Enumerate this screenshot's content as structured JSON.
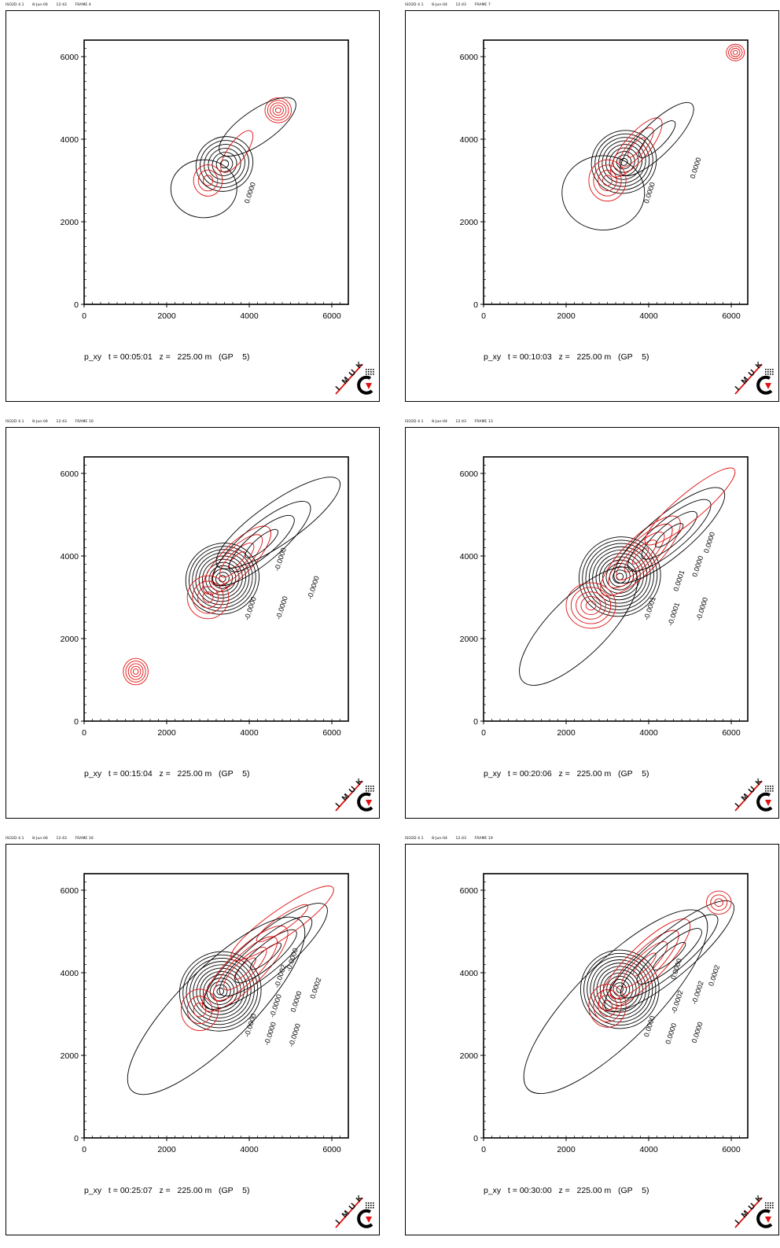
{
  "colors": {
    "positive": "#e01010",
    "negative": "#000000",
    "frame": "#000000"
  },
  "logo": {
    "letters": [
      "I",
      "M",
      "U",
      "K"
    ]
  },
  "chart_data": [
    {
      "type": "contour",
      "header": {
        "program": "ISO2D 4.1",
        "date": "8-Jun-04",
        "time": "12:43",
        "frame": "FRAME 4"
      },
      "caption": "p_xy   t = 00:05:01   z =   225.00 m   (GP    5)",
      "variable": "p_xy",
      "time": "00:05:01",
      "z": "225.00 m",
      "gp": "5",
      "xlim": [
        0,
        6400
      ],
      "ylim": [
        0,
        6400
      ],
      "xticks": [
        0,
        2000,
        4000,
        6000
      ],
      "yticks": [
        0,
        2000,
        4000,
        6000
      ],
      "tick_labels": [
        "0",
        "2000",
        "4000",
        "6000"
      ],
      "contour_labels": [
        "0.0000"
      ],
      "features": [
        {
          "sign": "neg",
          "x": 3400,
          "y": 3400,
          "rx": 700,
          "ry": 650,
          "rot": -30,
          "levels": 7
        },
        {
          "sign": "pos",
          "x": 3000,
          "y": 3000,
          "rx": 350,
          "ry": 380,
          "rot": 0,
          "levels": 3
        },
        {
          "sign": "pos",
          "x": 4700,
          "y": 4700,
          "rx": 320,
          "ry": 300,
          "rot": 0,
          "levels": 5
        },
        {
          "sign": "pos",
          "x": 3700,
          "y": 3700,
          "rx": 600,
          "ry": 220,
          "rot": -55,
          "levels": 1
        },
        {
          "sign": "zero",
          "x": 2900,
          "y": 2800,
          "rx": 800,
          "ry": 700,
          "rot": 0,
          "levels": 1
        },
        {
          "sign": "zero",
          "x": 4200,
          "y": 4300,
          "rx": 1100,
          "ry": 400,
          "rot": -35,
          "levels": 1
        }
      ]
    },
    {
      "type": "contour",
      "header": {
        "program": "ISO2D 4.1",
        "date": "8-Jun-04",
        "time": "12:43",
        "frame": "FRAME 7"
      },
      "caption": "p_xy   t = 00:10:03   z =   225.00 m   (GP    5)",
      "variable": "p_xy",
      "time": "00:10:03",
      "z": "225.00 m",
      "gp": "5",
      "xlim": [
        0,
        6400
      ],
      "ylim": [
        0,
        6400
      ],
      "xticks": [
        0,
        2000,
        4000,
        6000
      ],
      "yticks": [
        0,
        2000,
        4000,
        6000
      ],
      "tick_labels": [
        "0",
        "2000",
        "4000",
        "6000"
      ],
      "contour_labels": [
        "0.0000",
        "0.0000"
      ],
      "features": [
        {
          "sign": "neg",
          "x": 3400,
          "y": 3450,
          "rx": 800,
          "ry": 750,
          "rot": -30,
          "levels": 9
        },
        {
          "sign": "pos",
          "x": 3000,
          "y": 3000,
          "rx": 450,
          "ry": 500,
          "rot": 0,
          "levels": 4
        },
        {
          "sign": "pos",
          "x": 3700,
          "y": 3800,
          "rx": 900,
          "ry": 300,
          "rot": -50,
          "levels": 3
        },
        {
          "sign": "neg",
          "x": 4200,
          "y": 4000,
          "rx": 1200,
          "ry": 380,
          "rot": -45,
          "levels": 2
        },
        {
          "sign": "pos",
          "x": 6100,
          "y": 6100,
          "rx": 220,
          "ry": 200,
          "rot": 0,
          "levels": 4
        },
        {
          "sign": "zero",
          "x": 2900,
          "y": 2700,
          "rx": 1000,
          "ry": 900,
          "rot": 0,
          "levels": 1
        }
      ]
    },
    {
      "type": "contour",
      "header": {
        "program": "ISO2D 4.1",
        "date": "8-Jun-04",
        "time": "12:43",
        "frame": "FRAME 10"
      },
      "caption": "p_xy   t = 00:15:04   z =   225.00 m   (GP    5)",
      "variable": "p_xy",
      "time": "00:15:04",
      "z": "225.00 m",
      "gp": "5",
      "xlim": [
        0,
        6400
      ],
      "ylim": [
        0,
        6400
      ],
      "xticks": [
        0,
        2000,
        4000,
        6000
      ],
      "yticks": [
        0,
        2000,
        4000,
        6000
      ],
      "tick_labels": [
        "0",
        "2000",
        "4000",
        "6000"
      ],
      "contour_labels": [
        "-0.0000",
        "-0.0000",
        "-0.0000",
        "-0.0000"
      ],
      "features": [
        {
          "sign": "neg",
          "x": 3350,
          "y": 3450,
          "rx": 900,
          "ry": 850,
          "rot": -30,
          "levels": 11
        },
        {
          "sign": "pos",
          "x": 3000,
          "y": 3000,
          "rx": 500,
          "ry": 520,
          "rot": 0,
          "levels": 4
        },
        {
          "sign": "pos",
          "x": 3700,
          "y": 3900,
          "rx": 1100,
          "ry": 380,
          "rot": -45,
          "levels": 4
        },
        {
          "sign": "neg",
          "x": 4300,
          "y": 4300,
          "rx": 1500,
          "ry": 450,
          "rot": -40,
          "levels": 3
        },
        {
          "sign": "pos",
          "x": 1250,
          "y": 1200,
          "rx": 300,
          "ry": 320,
          "rot": 0,
          "levels": 5
        },
        {
          "sign": "zero",
          "x": 4700,
          "y": 4800,
          "rx": 1800,
          "ry": 500,
          "rot": -35,
          "levels": 1
        }
      ]
    },
    {
      "type": "contour",
      "header": {
        "program": "ISO2D 4.1",
        "date": "8-Jun-04",
        "time": "12:43",
        "frame": "FRAME 13"
      },
      "caption": "p_xy   t = 00:20:06   z =   225.00 m   (GP    5)",
      "variable": "p_xy",
      "time": "00:20:06",
      "z": "225.00 m",
      "gp": "5",
      "xlim": [
        0,
        6400
      ],
      "ylim": [
        0,
        6400
      ],
      "xticks": [
        0,
        2000,
        4000,
        6000
      ],
      "yticks": [
        0,
        2000,
        4000,
        6000
      ],
      "tick_labels": [
        "0",
        "2000",
        "4000",
        "6000"
      ],
      "contour_labels": [
        "-0.0001",
        "-0.0001",
        "-0.0000",
        "0.0001",
        "0.0000",
        "0.0000"
      ],
      "features": [
        {
          "sign": "neg",
          "x": 3300,
          "y": 3500,
          "rx": 1000,
          "ry": 950,
          "rot": -30,
          "levels": 12
        },
        {
          "sign": "pos",
          "x": 2600,
          "y": 2800,
          "rx": 600,
          "ry": 550,
          "rot": 0,
          "levels": 5
        },
        {
          "sign": "pos",
          "x": 3800,
          "y": 4000,
          "rx": 1300,
          "ry": 420,
          "rot": -45,
          "levels": 5
        },
        {
          "sign": "neg",
          "x": 4500,
          "y": 4500,
          "rx": 1700,
          "ry": 500,
          "rot": -40,
          "levels": 4
        },
        {
          "sign": "pos",
          "x": 5000,
          "y": 5200,
          "rx": 1400,
          "ry": 320,
          "rot": -40,
          "levels": 1
        },
        {
          "sign": "zero",
          "x": 2300,
          "y": 2300,
          "rx": 1900,
          "ry": 700,
          "rot": -45,
          "levels": 1
        }
      ]
    },
    {
      "type": "contour",
      "header": {
        "program": "ISO2D 4.1",
        "date": "8-Jun-04",
        "time": "12:43",
        "frame": "FRAME 16"
      },
      "caption": "p_xy   t = 00:25:07   z =   225.00 m   (GP    5)",
      "variable": "p_xy",
      "time": "00:25:07",
      "z": "225.00 m",
      "gp": "5",
      "xlim": [
        0,
        6400
      ],
      "ylim": [
        0,
        6400
      ],
      "xticks": [
        0,
        2000,
        4000,
        6000
      ],
      "yticks": [
        0,
        2000,
        4000,
        6000
      ],
      "tick_labels": [
        "0",
        "2000",
        "4000",
        "6000"
      ],
      "contour_labels": [
        "-0.0000",
        "-0.0000",
        "-0.0000",
        "-0.0000",
        "0.0000",
        "0.0002",
        "-0.0002",
        "-0.0000"
      ],
      "features": [
        {
          "sign": "neg",
          "x": 3300,
          "y": 3550,
          "rx": 1000,
          "ry": 950,
          "rot": -30,
          "levels": 12
        },
        {
          "sign": "pos",
          "x": 2800,
          "y": 3100,
          "rx": 450,
          "ry": 500,
          "rot": 0,
          "levels": 3
        },
        {
          "sign": "pos",
          "x": 3900,
          "y": 4100,
          "rx": 1400,
          "ry": 430,
          "rot": -45,
          "levels": 4
        },
        {
          "sign": "neg",
          "x": 4400,
          "y": 4400,
          "rx": 1900,
          "ry": 520,
          "rot": -40,
          "levels": 4
        },
        {
          "sign": "pos",
          "x": 4800,
          "y": 5200,
          "rx": 1500,
          "ry": 330,
          "rot": -35,
          "levels": 2
        },
        {
          "sign": "zero",
          "x": 3200,
          "y": 3200,
          "rx": 2900,
          "ry": 900,
          "rot": -45,
          "levels": 1
        }
      ]
    },
    {
      "type": "contour",
      "header": {
        "program": "ISO2D 4.1",
        "date": "8-Jun-04",
        "time": "12:43",
        "frame": "FRAME 19"
      },
      "caption": "p_xy   t = 00:30:00   z =   225.00 m   (GP    5)",
      "variable": "p_xy",
      "time": "00:30:00",
      "z": "225.00 m",
      "gp": "5",
      "xlim": [
        0,
        6400
      ],
      "ylim": [
        0,
        6400
      ],
      "xticks": [
        0,
        2000,
        4000,
        6000
      ],
      "yticks": [
        0,
        2000,
        4000,
        6000
      ],
      "tick_labels": [
        "0",
        "2000",
        "4000",
        "6000"
      ],
      "contour_labels": [
        "0.0000",
        "0.0000",
        "0.0000",
        "-0.0002",
        "-0.0002",
        "0.0002",
        "0.0000"
      ],
      "features": [
        {
          "sign": "neg",
          "x": 3300,
          "y": 3600,
          "rx": 950,
          "ry": 950,
          "rot": -30,
          "levels": 12
        },
        {
          "sign": "pos",
          "x": 3000,
          "y": 3200,
          "rx": 450,
          "ry": 520,
          "rot": 0,
          "levels": 4
        },
        {
          "sign": "pos",
          "x": 3900,
          "y": 4200,
          "rx": 1500,
          "ry": 430,
          "rot": -45,
          "levels": 4
        },
        {
          "sign": "neg",
          "x": 4500,
          "y": 4400,
          "rx": 2000,
          "ry": 520,
          "rot": -40,
          "levels": 4
        },
        {
          "sign": "pos",
          "x": 5700,
          "y": 5700,
          "rx": 300,
          "ry": 280,
          "rot": 0,
          "levels": 3
        },
        {
          "sign": "zero",
          "x": 3200,
          "y": 3300,
          "rx": 3000,
          "ry": 950,
          "rot": -45,
          "levels": 1
        }
      ]
    }
  ]
}
